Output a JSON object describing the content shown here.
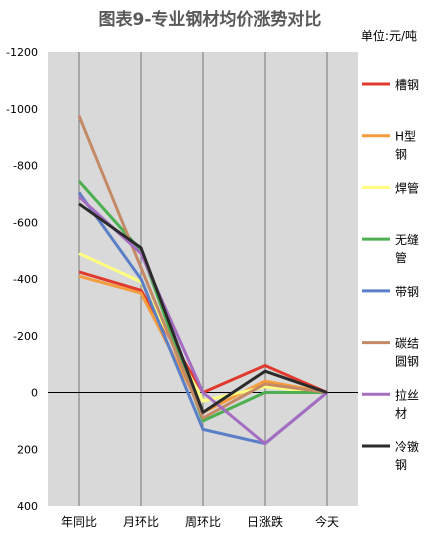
{
  "chart_data": {
    "type": "line",
    "title": "图表9-专业钢材均价涨势对比",
    "unit": "单位:元/吨",
    "categories": [
      "年同比",
      "月环比",
      "周环比",
      "日涨跌",
      "今天"
    ],
    "y_tick_labels": [
      "-1200",
      "-1000",
      "-800",
      "-600",
      "-400",
      "-200",
      "0",
      "200",
      "400"
    ],
    "ylim": [
      -1200,
      400
    ],
    "y_inverted": true,
    "grid": "vertical",
    "legend_position": "right",
    "series": [
      {
        "name": "槽钢",
        "label_lines": [
          "槽钢"
        ],
        "color": "#E03A2F",
        "values": [
          -425,
          -360,
          0,
          -95,
          0
        ]
      },
      {
        "name": "H型钢",
        "label_lines": [
          "H型",
          "钢"
        ],
        "color": "#F59C3D",
        "values": [
          -410,
          -350,
          70,
          -40,
          0
        ]
      },
      {
        "name": "焊管",
        "label_lines": [
          "焊管"
        ],
        "color": "#FFFF80",
        "values": [
          -490,
          -390,
          30,
          -20,
          0
        ]
      },
      {
        "name": "无缝管",
        "label_lines": [
          "无缝",
          "管"
        ],
        "color": "#4CAF50",
        "values": [
          -745,
          -500,
          100,
          0,
          0
        ]
      },
      {
        "name": "带钢",
        "label_lines": [
          "带钢"
        ],
        "color": "#5B7FC7",
        "values": [
          -705,
          -400,
          130,
          180,
          0
        ]
      },
      {
        "name": "碳结圆钢",
        "label_lines": [
          "碳结",
          "圆钢"
        ],
        "color": "#C48A66",
        "values": [
          -975,
          -440,
          90,
          -30,
          0
        ]
      },
      {
        "name": "拉丝材",
        "label_lines": [
          "拉丝",
          "材"
        ],
        "color": "#A56DC1",
        "values": [
          -690,
          -490,
          0,
          180,
          0
        ]
      },
      {
        "name": "冷镦钢",
        "label_lines": [
          "冷镦",
          "钢"
        ],
        "color": "#2B2B2B",
        "values": [
          -665,
          -510,
          70,
          -75,
          0
        ]
      }
    ]
  }
}
